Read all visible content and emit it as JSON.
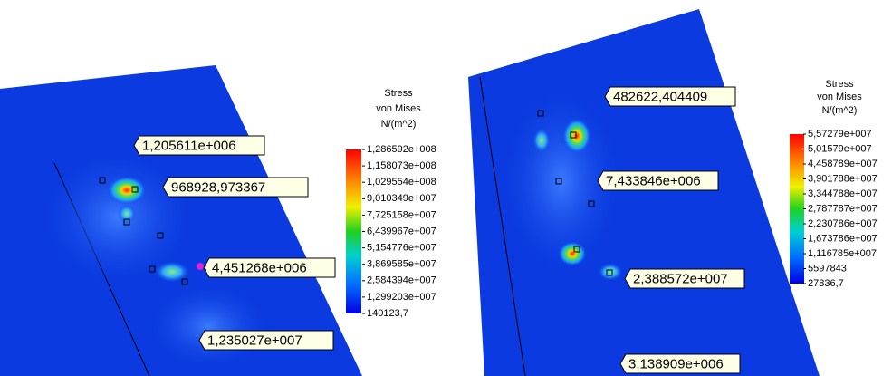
{
  "left_panel": {
    "legend": {
      "title": [
        "Stress",
        "von Mises",
        "N/(m^2)"
      ],
      "labels": [
        "1,286592e+008",
        "1,158073e+008",
        "1,029554e+008",
        "9,010349e+007",
        "7,725158e+007",
        "6,439967e+007",
        "5,154776e+007",
        "3,869585e+007",
        "2,584394e+007",
        "1,299203e+007",
        "140123,7"
      ]
    },
    "probes": [
      "1,205611e+006",
      "968928,973367",
      "4,451268e+006",
      "1,235027e+007"
    ]
  },
  "right_panel": {
    "legend": {
      "title": [
        "Stress",
        "von Mises",
        "N/(m^2)"
      ],
      "labels": [
        "5,57279e+007",
        "5,01579e+007",
        "4,458789e+007",
        "3,901788e+007",
        "3,344788e+007",
        "2,787787e+007",
        "2,230786e+007",
        "1,673786e+007",
        "1,116785e+007",
        "5597843",
        "27836,7"
      ]
    },
    "probes": [
      "482622,404409",
      "7,433846e+006",
      "2,388572e+007",
      "3,138909e+006"
    ]
  }
}
